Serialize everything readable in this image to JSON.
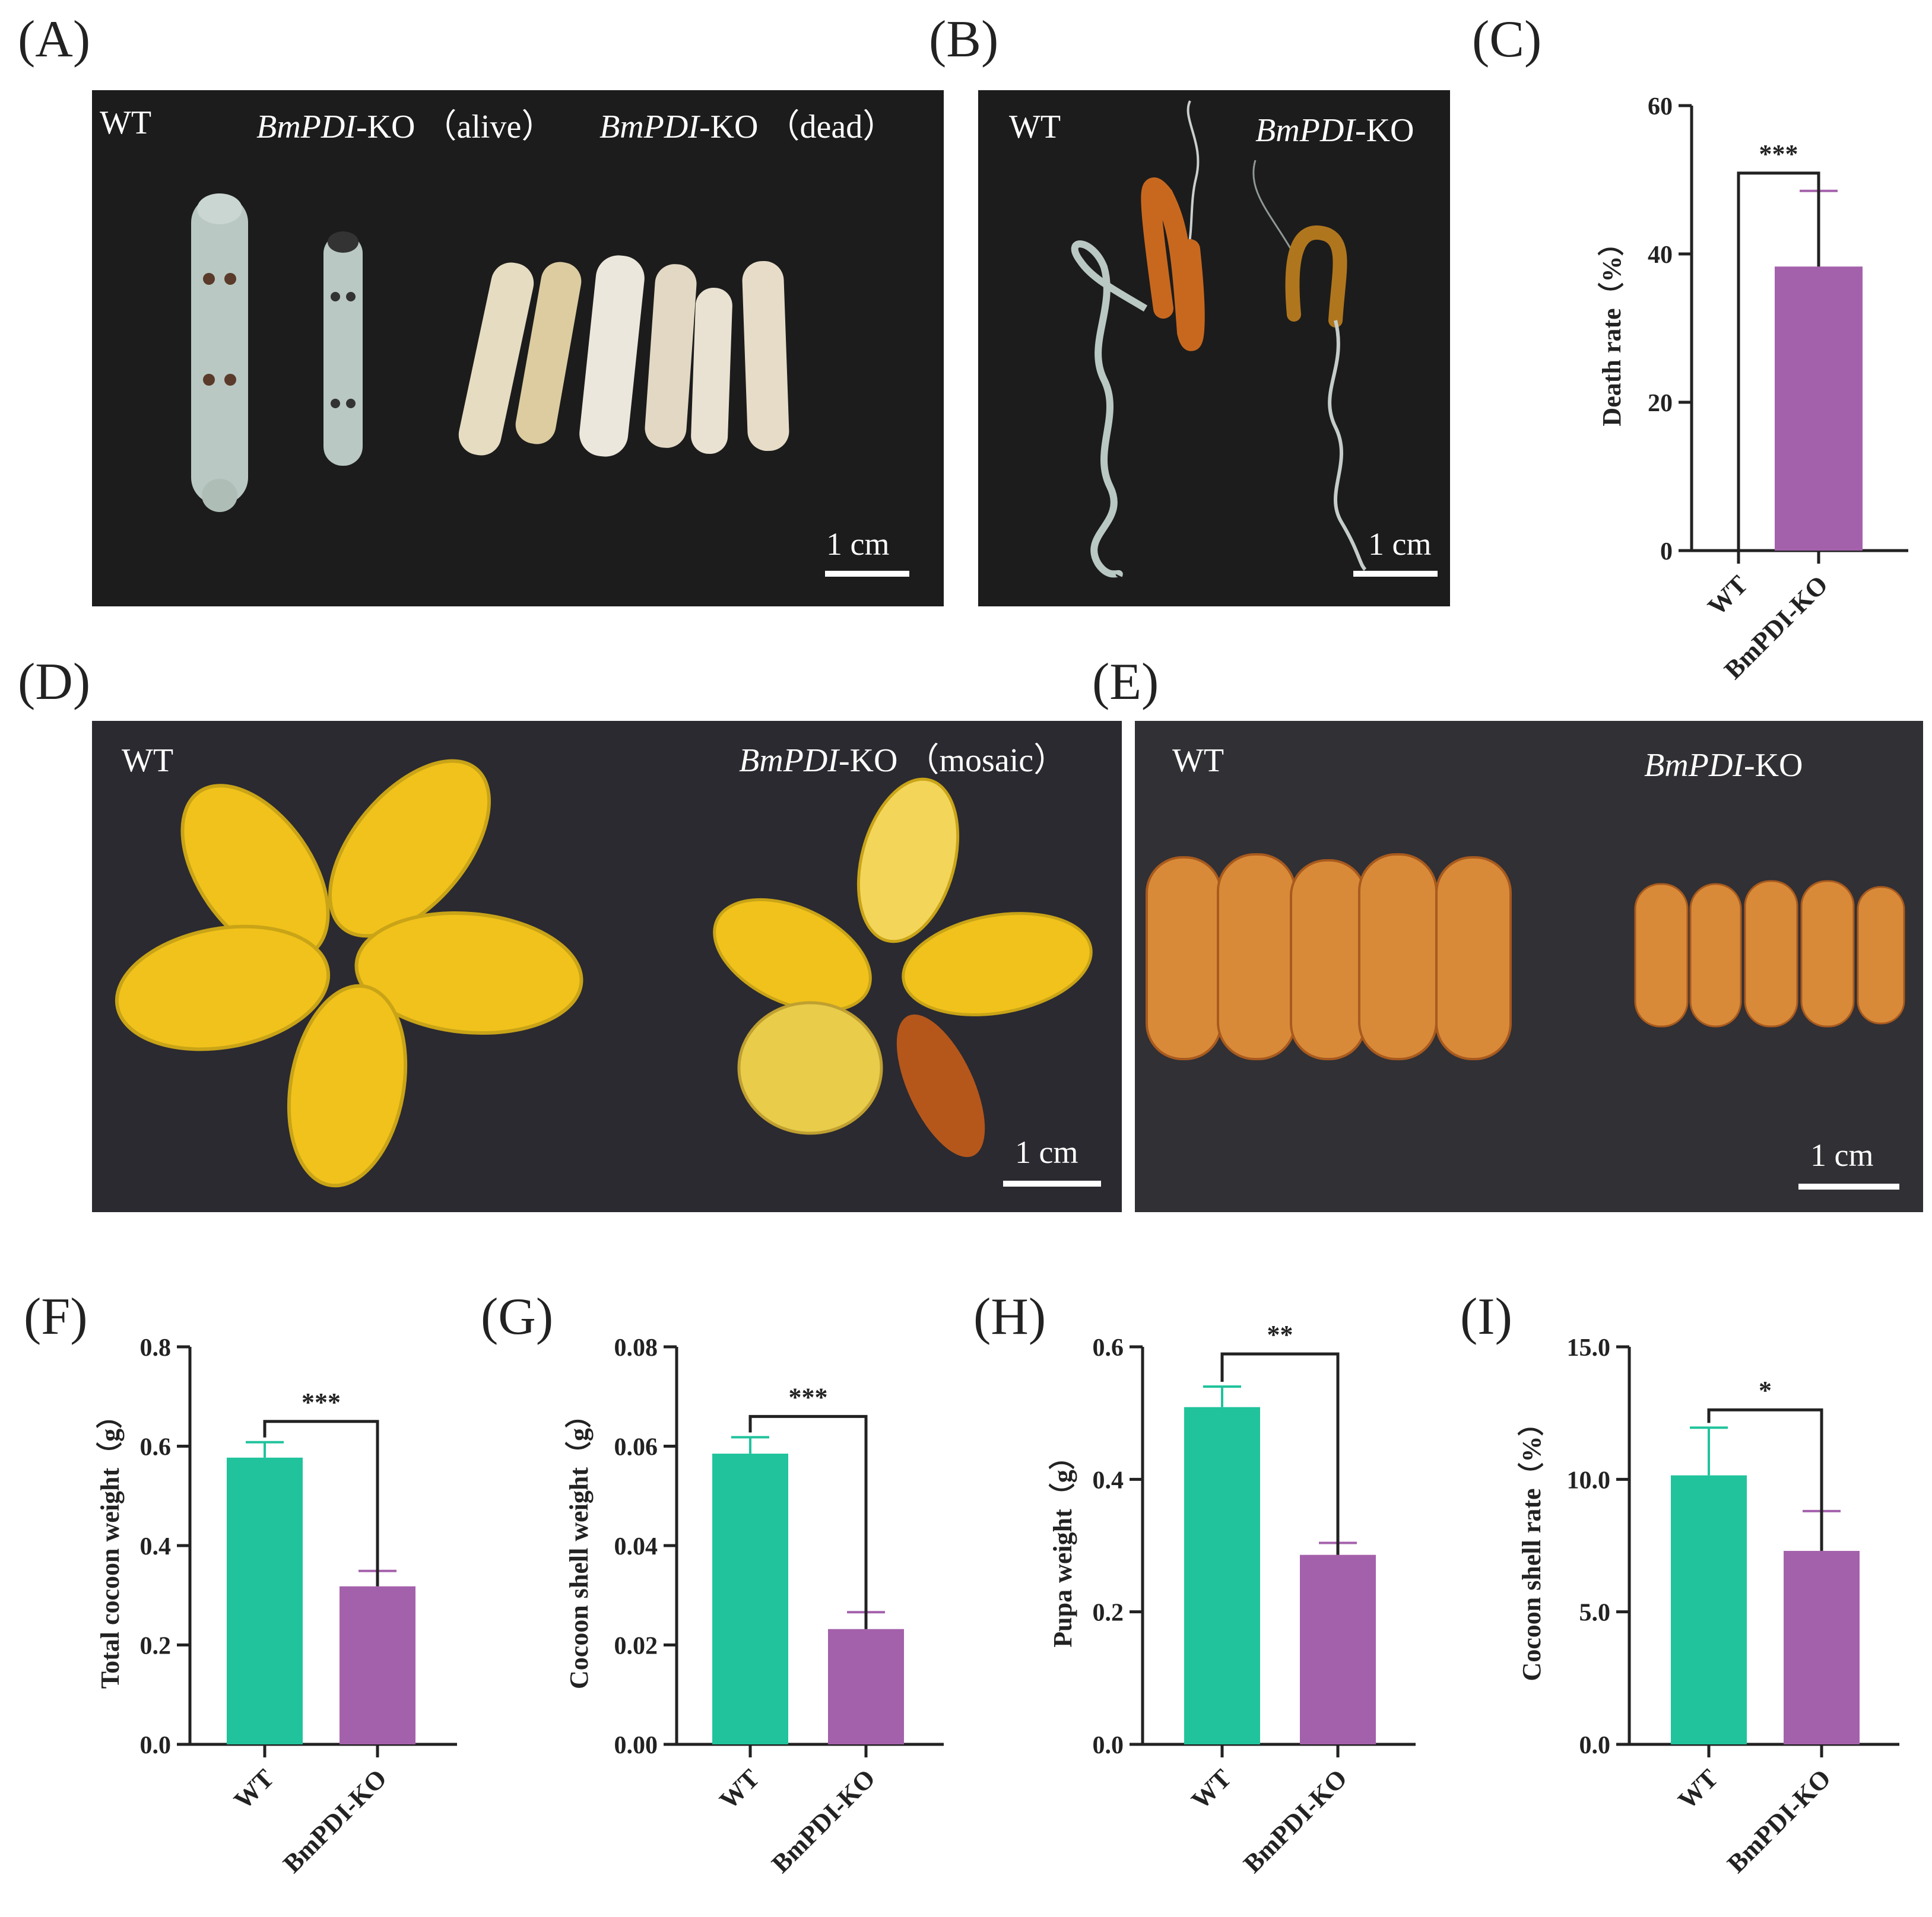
{
  "panels": {
    "A": {
      "label": "(A)",
      "wt": "WT",
      "ko_alive_name": "BmPDI",
      "ko_alive_suffix": "-KO （alive）",
      "ko_dead_name": "BmPDI",
      "ko_dead_suffix": "-KO （dead）",
      "scale": "1 cm"
    },
    "B": {
      "label": "(B)",
      "wt": "WT",
      "ko_name": "BmPDI",
      "ko_suffix": "-KO",
      "scale": "1 cm"
    },
    "C": {
      "label": "(C)"
    },
    "D": {
      "label": "(D)",
      "wt": "WT",
      "ko_name": "BmPDI",
      "ko_suffix": "-KO （mosaic）",
      "scale": "1 cm"
    },
    "E": {
      "label": "(E)",
      "wt": "WT",
      "ko_name": "BmPDI",
      "ko_suffix": "-KO",
      "scale": "1 cm"
    },
    "F": {
      "label": "(F)"
    },
    "G": {
      "label": "(G)"
    },
    "H": {
      "label": "(H)"
    },
    "I": {
      "label": "(I)"
    }
  },
  "colors": {
    "wt": "#20c39c",
    "ko": "#a461ab",
    "photo_bg": "#1c1c1c",
    "cocoon": "#f1c21b",
    "pupa": "#d98a38"
  },
  "chart_data": [
    {
      "id": "C",
      "type": "bar",
      "ylabel": "Death rate（%）",
      "categories": [
        "WT",
        "BmPDI-KO"
      ],
      "values": [
        0,
        38.3
      ],
      "errors": [
        0,
        10.2
      ],
      "ylim": [
        0,
        60
      ],
      "yticks": [
        "0",
        "20",
        "40",
        "60"
      ],
      "yvals": [
        0,
        20,
        40,
        60
      ],
      "significance": "***"
    },
    {
      "id": "F",
      "type": "bar",
      "ylabel": "Total cocoon weight（g）",
      "categories": [
        "WT",
        "BmPDI-KO"
      ],
      "values": [
        0.577,
        0.318
      ],
      "errors": [
        0.031,
        0.031
      ],
      "ylim": [
        0,
        0.8
      ],
      "yticks": [
        "0.0",
        "0.2",
        "0.4",
        "0.6",
        "0.8"
      ],
      "yvals": [
        0,
        0.2,
        0.4,
        0.6,
        0.8
      ],
      "significance": "***"
    },
    {
      "id": "G",
      "type": "bar",
      "ylabel": "Cocoon shell weight（g）",
      "categories": [
        "WT",
        "BmPDI-KO"
      ],
      "values": [
        0.0585,
        0.0232
      ],
      "errors": [
        0.0033,
        0.0034
      ],
      "ylim": [
        0,
        0.08
      ],
      "yticks": [
        "0.00",
        "0.02",
        "0.04",
        "0.06",
        "0.08"
      ],
      "yvals": [
        0,
        0.02,
        0.04,
        0.06,
        0.08
      ],
      "significance": "***"
    },
    {
      "id": "H",
      "type": "bar",
      "ylabel": "Pupa weight（g）",
      "categories": [
        "WT",
        "BmPDI-KO"
      ],
      "values": [
        0.509,
        0.286
      ],
      "errors": [
        0.031,
        0.018
      ],
      "ylim": [
        0,
        0.6
      ],
      "yticks": [
        "0.0",
        "0.2",
        "0.4",
        "0.6"
      ],
      "yvals": [
        0,
        0.2,
        0.4,
        0.6
      ],
      "significance": "**"
    },
    {
      "id": "I",
      "type": "bar",
      "ylabel": "Cocoon shell rate（%）",
      "categories": [
        "WT",
        "BmPDI-KO"
      ],
      "values": [
        10.15,
        7.3
      ],
      "errors": [
        1.8,
        1.5
      ],
      "ylim": [
        0,
        15
      ],
      "yticks": [
        "0.0",
        "5.0",
        "10.0",
        "15.0"
      ],
      "yvals": [
        0,
        5,
        10,
        15
      ],
      "significance": "*"
    }
  ]
}
